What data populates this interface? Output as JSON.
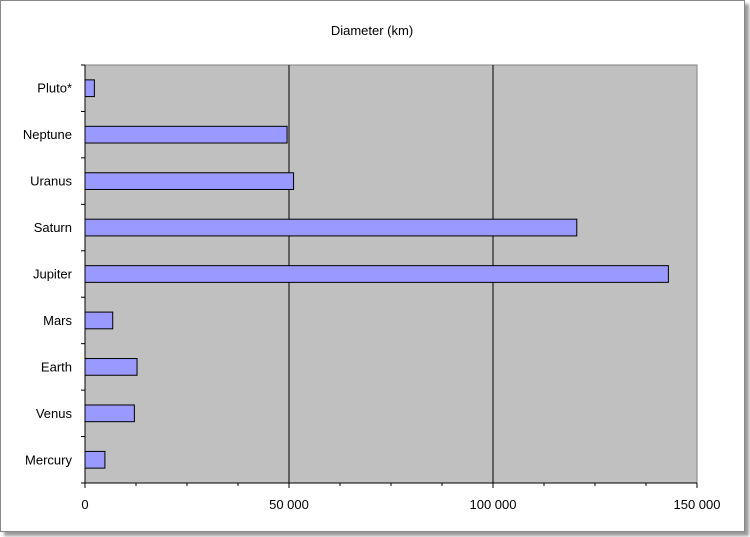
{
  "chart_data": {
    "type": "bar",
    "orientation": "horizontal",
    "title": "Diameter (km)",
    "xlabel": "",
    "ylabel": "",
    "categories": [
      "Mercury",
      "Venus",
      "Earth",
      "Mars",
      "Jupiter",
      "Saturn",
      "Uranus",
      "Neptune",
      "Pluto*"
    ],
    "values": [
      4880,
      12104,
      12756,
      6794,
      142984,
      120536,
      51118,
      49528,
      2300
    ],
    "xlim": [
      0,
      150000
    ],
    "xticks": [
      0,
      50000,
      100000,
      150000
    ],
    "xtick_labels": [
      "0",
      "50 000",
      "100 000",
      "150 000"
    ],
    "grid": "vertical major gridlines",
    "legend": "none",
    "colors": {
      "bar_fill": "#9999ff",
      "bar_stroke": "#000000",
      "plot_background": "#c0c0c0",
      "gridline": "#000000"
    }
  }
}
